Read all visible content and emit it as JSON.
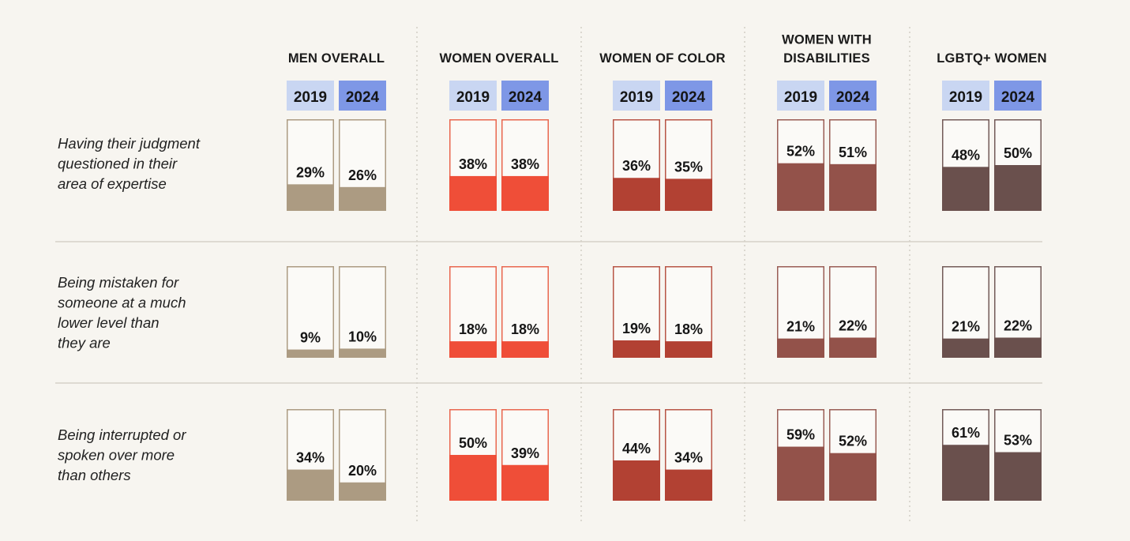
{
  "chart_data": {
    "type": "bar",
    "ylim": [
      0,
      100
    ],
    "years": [
      "2019",
      "2024"
    ],
    "groups": [
      {
        "name_lines": [
          "MEN OVERALL"
        ],
        "color": "#ac9b82",
        "outline": "#ac9b82"
      },
      {
        "name_lines": [
          "WOMEN OVERALL"
        ],
        "color": "#ef4e38",
        "outline": "#e9674f"
      },
      {
        "name_lines": [
          "WOMEN OF COLOR"
        ],
        "color": "#b24133",
        "outline": "#b85546"
      },
      {
        "name_lines": [
          "WOMEN WITH",
          "DISABILITIES"
        ],
        "color": "#93524a",
        "outline": "#9a5d55"
      },
      {
        "name_lines": [
          "LGBTQ+ WOMEN"
        ],
        "color": "#6a504d",
        "outline": "#735b58"
      }
    ],
    "rows": [
      {
        "label_lines": [
          "Having their judgment",
          "questioned in their",
          "area of expertise"
        ],
        "values": [
          [
            29,
            26
          ],
          [
            38,
            38
          ],
          [
            36,
            35
          ],
          [
            52,
            51
          ],
          [
            48,
            50
          ]
        ],
        "labels": [
          [
            "29%",
            "26%"
          ],
          [
            "38%",
            "38%"
          ],
          [
            "36%",
            "35%"
          ],
          [
            "52%",
            "51%"
          ],
          [
            "48%",
            "50%"
          ]
        ]
      },
      {
        "label_lines": [
          "Being mistaken for",
          "someone at a much",
          "lower level than",
          "they are"
        ],
        "values": [
          [
            9,
            10
          ],
          [
            18,
            18
          ],
          [
            19,
            18
          ],
          [
            21,
            22
          ],
          [
            21,
            22
          ]
        ],
        "labels": [
          [
            "9%",
            "10%"
          ],
          [
            "18%",
            "18%"
          ],
          [
            "19%",
            "18%"
          ],
          [
            "21%",
            "22%"
          ],
          [
            "21%",
            "22%"
          ]
        ]
      },
      {
        "label_lines": [
          "Being interrupted or",
          "spoken over more",
          "than others"
        ],
        "values": [
          [
            34,
            20
          ],
          [
            50,
            39
          ],
          [
            44,
            34
          ],
          [
            59,
            52
          ],
          [
            61,
            53
          ]
        ],
        "labels": [
          [
            "34%",
            "20%"
          ],
          [
            "50%",
            "39%"
          ],
          [
            "44%",
            "34%"
          ],
          [
            "59%",
            "52%"
          ],
          [
            "61%",
            "53%"
          ]
        ]
      }
    ],
    "year_colors": {
      "2019": "#c9d6f2",
      "2024": "#7e97e6"
    },
    "grid": false,
    "legend": "none"
  }
}
